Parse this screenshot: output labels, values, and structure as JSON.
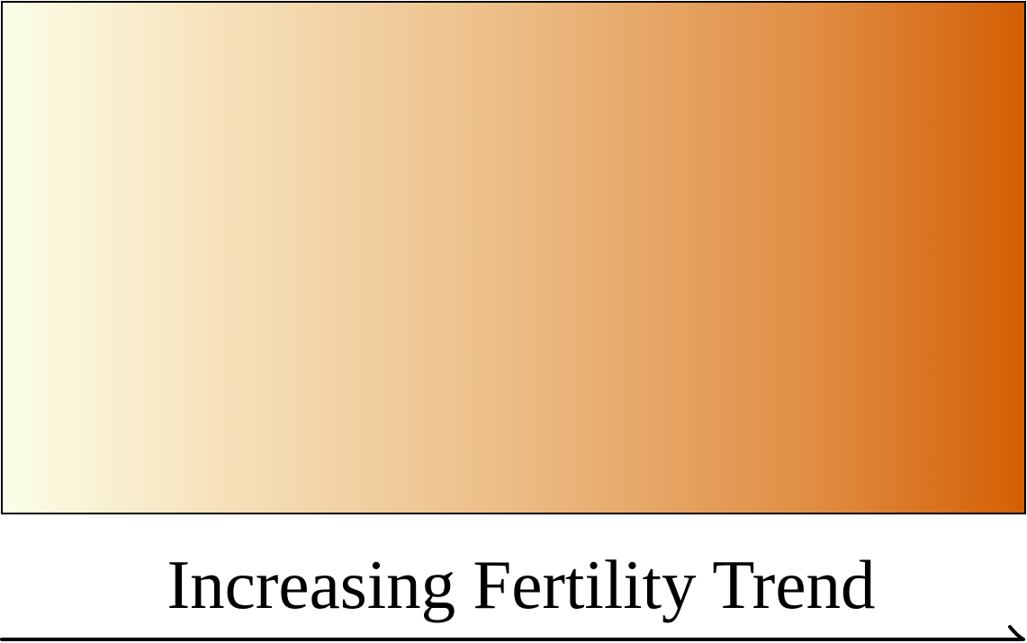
{
  "diagram": {
    "label": "Increasing Fertility Trend",
    "gradient": {
      "start_color": "#fbfee8",
      "end_color": "#d45f04",
      "border_color": "#000000"
    },
    "arrow": {
      "direction": "right",
      "color": "#000000"
    }
  }
}
